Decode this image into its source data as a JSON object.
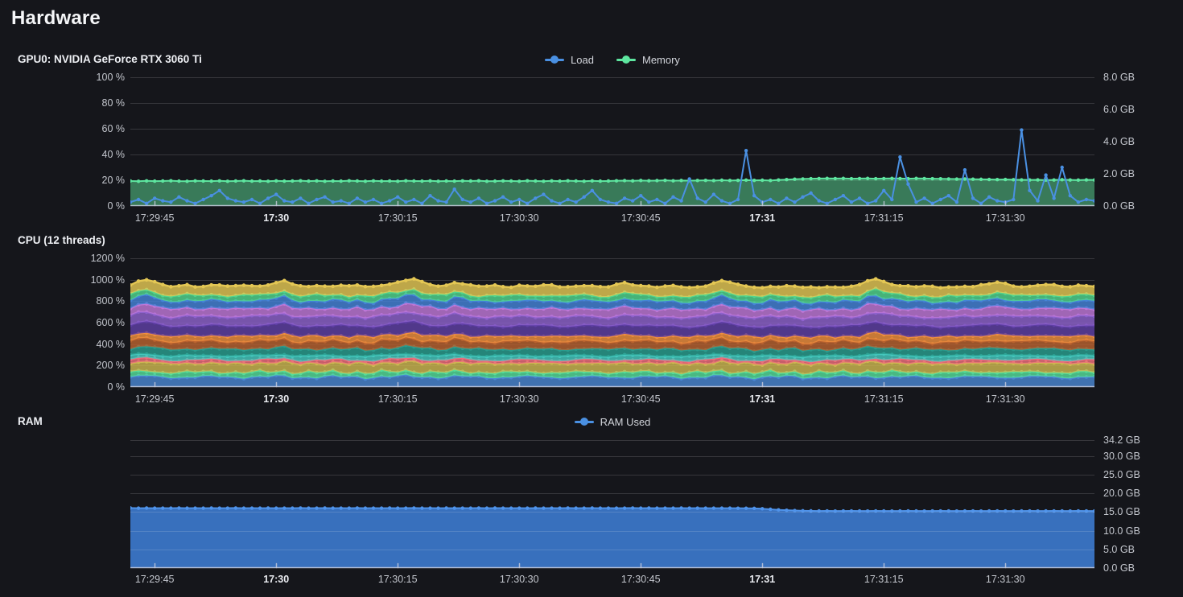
{
  "page": {
    "title": "Hardware"
  },
  "time_ticks": [
    {
      "label": "17:29:45",
      "idx": 3,
      "bold": false
    },
    {
      "label": "17:30",
      "idx": 18,
      "bold": true
    },
    {
      "label": "17:30:15",
      "idx": 33,
      "bold": false
    },
    {
      "label": "17:30:30",
      "idx": 48,
      "bold": false
    },
    {
      "label": "17:30:45",
      "idx": 63,
      "bold": false
    },
    {
      "label": "17:31",
      "idx": 78,
      "bold": true
    },
    {
      "label": "17:31:15",
      "idx": 93,
      "bold": false
    },
    {
      "label": "17:31:30",
      "idx": 108,
      "bold": false
    }
  ],
  "chart_data": [
    {
      "id": "gpu",
      "type": "area",
      "title": "GPU0: NVIDIA GeForce RTX 3060 Ti",
      "legend": [
        {
          "label": "Load",
          "color": "#4a90e2"
        },
        {
          "label": "Memory",
          "color": "#5ee6a0"
        }
      ],
      "left_axis": {
        "max": 100,
        "grid": true,
        "ticks": [
          {
            "v": 100,
            "label": "100 %"
          },
          {
            "v": 80,
            "label": "80 %"
          },
          {
            "v": 60,
            "label": "60 %"
          },
          {
            "v": 40,
            "label": "40 %"
          },
          {
            "v": 20,
            "label": "20 %"
          },
          {
            "v": 0,
            "label": "0 %"
          }
        ]
      },
      "right_axis": {
        "max": 8,
        "ticks": [
          {
            "v": 8,
            "label": "8.0 GB"
          },
          {
            "v": 6,
            "label": "6.0 GB"
          },
          {
            "v": 4,
            "label": "4.0 GB"
          },
          {
            "v": 2,
            "label": "2.0 GB"
          },
          {
            "v": 0,
            "label": "0.0 GB"
          }
        ]
      },
      "series": [
        {
          "name": "Memory",
          "mode": "area",
          "unit": "%",
          "color": "#5ee6a0",
          "fill": "rgba(88,205,140,0.55)",
          "values": [
            19.4,
            19.2,
            19.5,
            19.3,
            19.4,
            19.6,
            19.3,
            19.2,
            19.5,
            19.4,
            19.3,
            19.5,
            19.2,
            19.4,
            19.6,
            19.3,
            19.4,
            19.2,
            19.5,
            19.3,
            19.4,
            19.6,
            19.3,
            19.5,
            19.2,
            19.4,
            19.3,
            19.6,
            19.4,
            19.2,
            19.5,
            19.3,
            19.4,
            19.2,
            19.6,
            19.4,
            19.3,
            19.5,
            19.2,
            19.4,
            19.3,
            19.5,
            19.4,
            19.6,
            19.2,
            19.3,
            19.5,
            19.4,
            19.2,
            19.6,
            19.4,
            19.2,
            19.5,
            19.3,
            19.6,
            19.4,
            19.2,
            19.5,
            19.3,
            19.4,
            19.6,
            19.7,
            19.5,
            19.8,
            19.6,
            19.7,
            19.9,
            19.6,
            19.8,
            19.7,
            19.8,
            19.9,
            19.7,
            20.0,
            19.8,
            19.9,
            20.1,
            19.9,
            20.0,
            19.8,
            20.2,
            20.5,
            20.8,
            21.0,
            21.2,
            21.3,
            21.4,
            21.3,
            21.4,
            21.2,
            21.3,
            21.4,
            21.2,
            21.3,
            21.4,
            21.3,
            21.2,
            21.4,
            21.3,
            21.2,
            21.1,
            21.0,
            20.9,
            21.0,
            20.8,
            20.7,
            20.6,
            20.5,
            20.6,
            20.4,
            20.3,
            20.2,
            20.3,
            20.1,
            20.2,
            20.4,
            20.2,
            20.1,
            20.3,
            20.2
          ]
        },
        {
          "name": "Load",
          "mode": "line",
          "unit": "%",
          "color": "#4a90e2",
          "values": [
            3,
            5,
            2,
            6,
            4,
            3,
            7,
            4,
            2,
            5,
            8,
            12,
            6,
            4,
            3,
            5,
            2,
            6,
            9,
            4,
            3,
            6,
            2,
            5,
            7,
            3,
            4,
            2,
            6,
            3,
            5,
            2,
            4,
            7,
            3,
            5,
            2,
            8,
            4,
            3,
            13,
            5,
            3,
            6,
            2,
            4,
            7,
            3,
            5,
            2,
            6,
            9,
            4,
            2,
            5,
            3,
            7,
            12,
            5,
            3,
            2,
            6,
            4,
            8,
            3,
            5,
            2,
            7,
            4,
            21,
            6,
            3,
            9,
            4,
            2,
            5,
            43,
            8,
            3,
            5,
            2,
            6,
            3,
            7,
            10,
            4,
            2,
            5,
            8,
            3,
            6,
            2,
            4,
            12,
            5,
            38,
            17,
            3,
            6,
            2,
            5,
            8,
            3,
            28,
            6,
            2,
            7,
            4,
            3,
            5,
            59,
            12,
            4,
            24,
            6,
            30,
            8,
            3,
            5,
            4
          ]
        }
      ]
    },
    {
      "id": "cpu",
      "type": "stacked-area",
      "title": "CPU (12 threads)",
      "left_axis": {
        "max": 1200,
        "grid": true,
        "ticks": [
          {
            "v": 1200,
            "label": "1200 %"
          },
          {
            "v": 1000,
            "label": "1000 %"
          },
          {
            "v": 800,
            "label": "800 %"
          },
          {
            "v": 600,
            "label": "600 %"
          },
          {
            "v": 400,
            "label": "400 %"
          },
          {
            "v": 200,
            "label": "200 %"
          },
          {
            "v": 0,
            "label": "0 %"
          }
        ]
      },
      "total_percent": [
        950,
        985,
        1000,
        975,
        950,
        940,
        945,
        955,
        940,
        935,
        945,
        950,
        938,
        942,
        955,
        948,
        940,
        952,
        970,
        985,
        960,
        945,
        938,
        950,
        942,
        935,
        945,
        940,
        948,
        938,
        942,
        950,
        960,
        975,
        990,
        1005,
        980,
        958,
        945,
        950,
        975,
        960,
        945,
        938,
        942,
        950,
        940,
        935,
        945,
        940,
        938,
        945,
        952,
        940,
        935,
        942,
        948,
        938,
        930,
        935,
        955,
        975,
        960,
        945,
        938,
        930,
        935,
        942,
        938,
        930,
        935,
        945,
        968,
        985,
        975,
        955,
        940,
        935,
        930,
        938,
        932,
        940,
        935,
        928,
        935,
        930,
        938,
        932,
        928,
        935,
        950,
        990,
        1010,
        985,
        960,
        945,
        938,
        932,
        940,
        935,
        930,
        938,
        932,
        940,
        935,
        945,
        960,
        980,
        965,
        945,
        940,
        935,
        945,
        955,
        948,
        938,
        942,
        950,
        945,
        940
      ],
      "series": [
        {
          "color": "#4a86d2",
          "base": 80
        },
        {
          "color": "#56dd9a",
          "base": 38
        },
        {
          "color": "#cdb751",
          "base": 72
        },
        {
          "color": "#ee6e7c",
          "base": 26
        },
        {
          "color": "#45c8be",
          "base": 34
        },
        {
          "color": "#2a9d8f",
          "base": 55
        },
        {
          "color": "#b8622f",
          "base": 60
        },
        {
          "color": "#ef8f3e",
          "base": 44
        },
        {
          "color": "#5f3fa5",
          "base": 82
        },
        {
          "color": "#8d61cc",
          "base": 74
        },
        {
          "color": "#c078d8",
          "base": 64
        },
        {
          "color": "#4583d8",
          "base": 62
        },
        {
          "color": "#52d58e",
          "base": 44
        },
        {
          "color": "#e4c754",
          "base": 76
        }
      ]
    },
    {
      "id": "ram",
      "type": "area",
      "title": "RAM",
      "legend": [
        {
          "label": "RAM Used",
          "color": "#4a90e2"
        }
      ],
      "right_axis": {
        "max": 34.2,
        "grid": true,
        "grid_over": true,
        "ticks": [
          {
            "v": 34.2,
            "label": "34.2 GB"
          },
          {
            "v": 30,
            "label": "30.0 GB"
          },
          {
            "v": 25,
            "label": "25.0 GB"
          },
          {
            "v": 20,
            "label": "20.0 GB"
          },
          {
            "v": 15,
            "label": "15.0 GB"
          },
          {
            "v": 10,
            "label": "10.0 GB"
          },
          {
            "v": 5,
            "label": "5.0 GB"
          },
          {
            "v": 0,
            "label": "0.0 GB"
          }
        ]
      },
      "series": [
        {
          "name": "RAM Used",
          "mode": "area",
          "unit": "GB",
          "color": "#4f93ea",
          "fill": "rgba(62,125,212,0.88)",
          "values": [
            16.05,
            16.0,
            16.03,
            16.0,
            16.02,
            16.0,
            16.04,
            16.0,
            16.02,
            16.0,
            16.03,
            16.0,
            16.02,
            16.04,
            16.0,
            16.02,
            16.0,
            16.03,
            16.0,
            16.02,
            16.0,
            16.04,
            16.0,
            16.02,
            16.03,
            16.0,
            16.02,
            16.0,
            16.04,
            16.0,
            16.02,
            16.0,
            16.03,
            16.0,
            16.02,
            16.04,
            16.0,
            16.02,
            16.0,
            16.03,
            16.0,
            16.02,
            16.0,
            16.04,
            16.0,
            16.03,
            16.02,
            16.0,
            16.02,
            16.0,
            16.03,
            16.0,
            16.02,
            16.0,
            16.04,
            16.0,
            16.02,
            16.03,
            16.0,
            16.02,
            16.0,
            16.02,
            16.04,
            16.0,
            16.03,
            16.0,
            16.02,
            16.0,
            16.03,
            16.0,
            16.02,
            16.0,
            16.01,
            16.0,
            16.0,
            15.99,
            15.98,
            15.95,
            15.85,
            15.7,
            15.55,
            15.45,
            15.37,
            15.3,
            15.27,
            15.25,
            15.26,
            15.24,
            15.25,
            15.26,
            15.25,
            15.24,
            15.26,
            15.25,
            15.24,
            15.25,
            15.26,
            15.25,
            15.24,
            15.25,
            15.26,
            15.25,
            15.24,
            15.25,
            15.26,
            15.24,
            15.25,
            15.26,
            15.25,
            15.24,
            15.25,
            15.26,
            15.24,
            15.25,
            15.26,
            15.25,
            15.24,
            15.26,
            15.25,
            15.25
          ]
        }
      ]
    }
  ]
}
